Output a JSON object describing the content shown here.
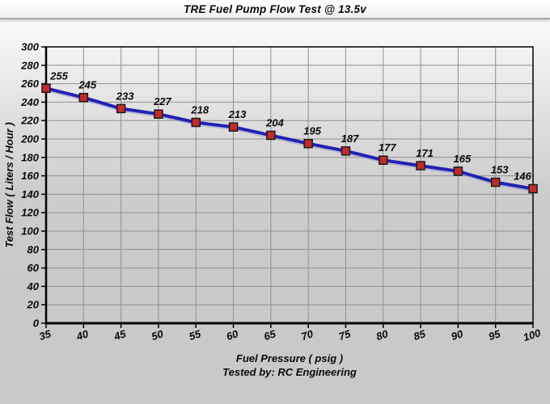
{
  "window": {
    "title": "TRE Fuel Pump Flow Test @ 13.5v"
  },
  "chart_data": {
    "type": "line",
    "title": "TRE Fuel Pump Flow Test @ 13.5v",
    "x": [
      35,
      40,
      45,
      50,
      55,
      60,
      65,
      70,
      75,
      80,
      85,
      90,
      95,
      100
    ],
    "series": [
      {
        "name": "Test Flow",
        "values": [
          255,
          245,
          233,
          227,
          218,
          213,
          204,
          195,
          187,
          177,
          171,
          165,
          153,
          146
        ]
      }
    ],
    "data_labels_shown": true,
    "xlabel": "Fuel Pressure ( psig )",
    "ylabel": "Test Flow ( Liters / Hour )",
    "footer": "Tested by: RC Engineering",
    "xlim": [
      35,
      100
    ],
    "ylim": [
      0,
      300
    ],
    "x_tick_step": 5,
    "y_tick_step": 20,
    "grid": true,
    "legend_position": "none",
    "colors": {
      "line": "#2222b2",
      "line_shadow": "#9a9ad0",
      "marker_fill": "#c32b2b",
      "marker_border": "#1a1a1a",
      "grid": "#8f8f8f",
      "axis": "#000000",
      "text": "#0a0a0a"
    }
  }
}
